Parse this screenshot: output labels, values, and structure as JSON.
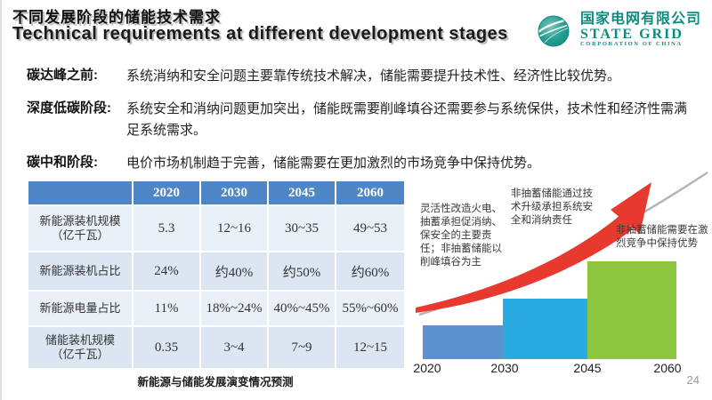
{
  "slide": {
    "title_zh": "不同发展阶段的储能技术需求",
    "title_en": "Technical requirements at different development stages",
    "page_number": "24"
  },
  "logo": {
    "icon": "state-grid-globe",
    "name_zh": "国家电网有限公司",
    "name_en": "STATE GRID",
    "name_sub": "CORPORATION OF CHINA",
    "brand_color": "#0e8c80"
  },
  "bullets": [
    {
      "label": "碳达峰之前:",
      "text": "系统消纳和安全问题主要靠传统技术解决，储能需要提升技术性、经济性比较优势。"
    },
    {
      "label": "深度低碳阶段:",
      "text": "系统安全和消纳问题更加突出，储能既需要削峰填谷还需要参与系统保供，技术性和经济性需满足系统需求。"
    },
    {
      "label": "碳中和阶段:",
      "text": "电价市场机制趋于完善，储能需要在更加激烈的市场竞争中保持优势。"
    }
  ],
  "table": {
    "header": [
      "",
      "2020",
      "2030",
      "2045",
      "2060"
    ],
    "header_color": "#4f86c6",
    "rows": [
      {
        "label": "新能源装机规模",
        "sublabel": "（亿千瓦）",
        "values": [
          "5.3",
          "12~16",
          "30~35",
          "49~53"
        ]
      },
      {
        "label": "新能源装机占比",
        "sublabel": "",
        "values": [
          "24%",
          "约40%",
          "约50%",
          "约60%"
        ]
      },
      {
        "label": "新能源电量占比",
        "sublabel": "",
        "values": [
          "11%",
          "18%~24%",
          "40%~45%",
          "55%~60%"
        ]
      },
      {
        "label": "储能装机规模",
        "sublabel": "（亿千瓦）",
        "values": [
          "0.35",
          "3~4",
          "7~9",
          "12~15"
        ]
      }
    ],
    "caption": "新能源与储能发展演变情况预测"
  },
  "chart_data": {
    "type": "bar",
    "title": "",
    "xlabel": "",
    "ylabel": "",
    "categories": [
      "2020",
      "2030",
      "2045",
      "2060"
    ],
    "bars": [
      {
        "period": "2020-2030",
        "relative_height": 1.0,
        "color": "#5b92ce"
      },
      {
        "period": "2030-2045",
        "relative_height": 1.8,
        "color": "#29abe2"
      },
      {
        "period": "2045-2060",
        "relative_height": 2.9,
        "color": "#8dc63f"
      }
    ],
    "annotations": [
      "灵活性改造火电、抽蓄承担促消纳、保安全的主要责任；非抽蓄储能以削峰填谷为主",
      "非抽蓄储能通过技术升级承担系统安全和消纳责任",
      "非抽蓄储能需要在激烈竞争中保持优势"
    ],
    "trend_arrow": "red-rising-swoosh",
    "legend": "none",
    "grid": "off"
  }
}
